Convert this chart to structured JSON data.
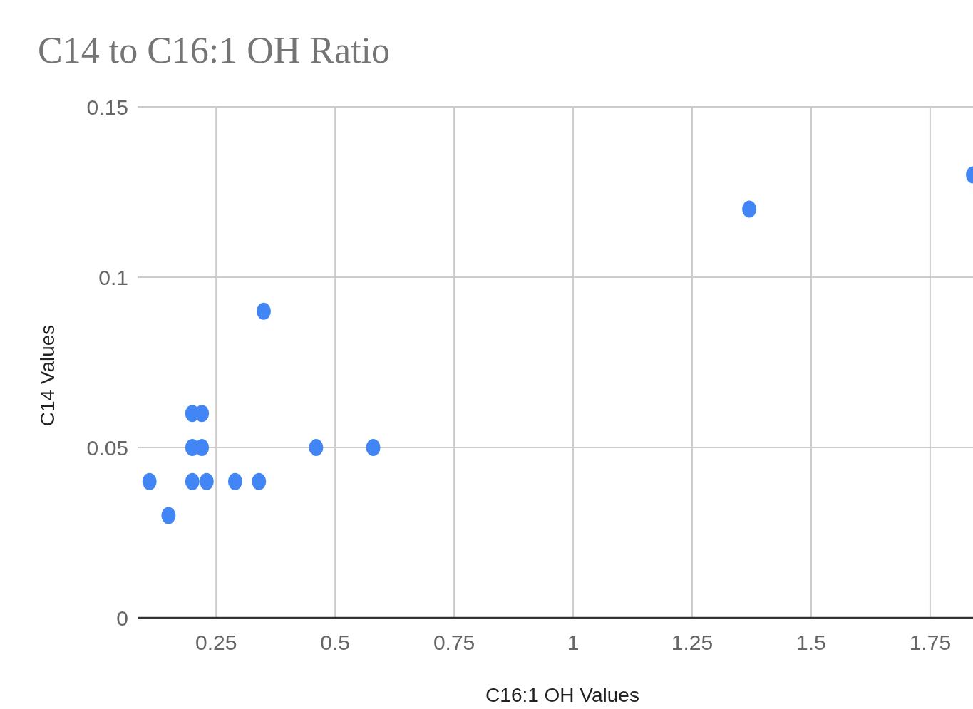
{
  "chart_data": {
    "type": "scatter",
    "title": "C14 to C16:1 OH Ratio",
    "xlabel": "C16:1 OH Values",
    "ylabel": "C14 Values",
    "x": [
      0.11,
      0.15,
      0.2,
      0.23,
      0.2,
      0.22,
      0.2,
      0.22,
      0.29,
      0.34,
      0.35,
      0.46,
      0.58,
      1.37,
      1.84
    ],
    "series": [
      {
        "color": "#4285f4",
        "values": [
          0.04,
          0.03,
          0.04,
          0.04,
          0.05,
          0.05,
          0.06,
          0.06,
          0.04,
          0.04,
          0.09,
          0.05,
          0.05,
          0.12,
          0.13
        ]
      }
    ],
    "xlim": [
      0.085,
      1.84
    ],
    "xticks": [
      0.25,
      0.5,
      0.75,
      1,
      1.25,
      1.5,
      1.75
    ],
    "ylim": [
      0,
      0.15
    ],
    "yticks": [
      0,
      0.05,
      0.1,
      0.15
    ],
    "grid": true,
    "marker": "circle"
  }
}
